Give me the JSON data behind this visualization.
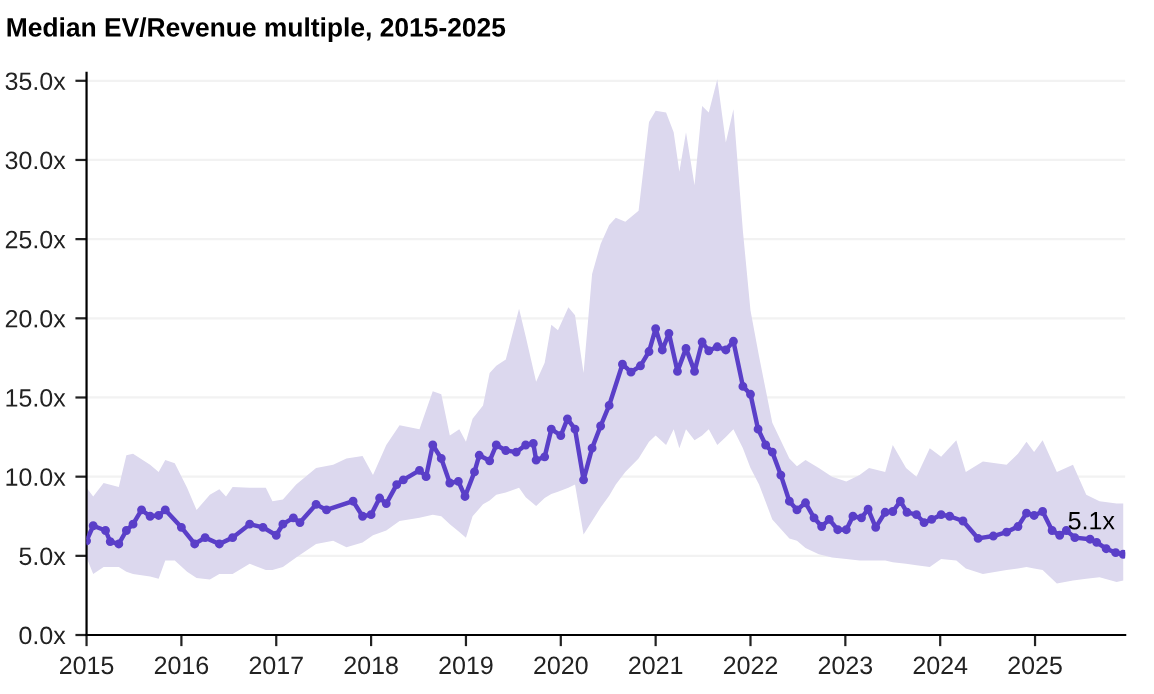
{
  "chart_data": {
    "type": "line",
    "title": "Median EV/Revenue multiple, 2015-2025",
    "xlim": [
      2015,
      2025.95
    ],
    "xticks": [
      2015,
      2016,
      2017,
      2018,
      2019,
      2020,
      2021,
      2022,
      2023,
      2024,
      2025
    ],
    "ylim": [
      0,
      35.5
    ],
    "yticks": [
      {
        "value": 0,
        "label": "0.0x"
      },
      {
        "value": 5,
        "label": "5.0x"
      },
      {
        "value": 10,
        "label": "10.0x"
      },
      {
        "value": 15,
        "label": "15.0x"
      },
      {
        "value": 20,
        "label": "20.0x"
      },
      {
        "value": 25,
        "label": "25.0x"
      },
      {
        "value": 30,
        "label": "30.0x"
      },
      {
        "value": 35,
        "label": "35.0x"
      }
    ],
    "grid": "y",
    "legend": false,
    "series": [
      {
        "type": "line",
        "color": "#dcd8ee",
        "marker": "none",
        "values": [
          null,
          null,
          null,
          null,
          null,
          null,
          null,
          null,
          null,
          null,
          null,
          null,
          null,
          null,
          null,
          null,
          null,
          null,
          null,
          null,
          null,
          null,
          null,
          null,
          null,
          null,
          null,
          null,
          null,
          null,
          null,
          null,
          null,
          null,
          null,
          null,
          null,
          null,
          null,
          null,
          null,
          null,
          null,
          null,
          null,
          null,
          null,
          null,
          null,
          null,
          null,
          null,
          null,
          null,
          null,
          null,
          null,
          null,
          null,
          null,
          null,
          null,
          null,
          null,
          null,
          null,
          null,
          null,
          null,
          null,
          null,
          null,
          null,
          null,
          null,
          null,
          null,
          null,
          null,
          null,
          null,
          null,
          null,
          null,
          null,
          null,
          null,
          null,
          null,
          null,
          null,
          null,
          null,
          null,
          null,
          null,
          null,
          null
        ],
        "x": [
          2015.0,
          2015.07,
          2015.18,
          2015.34,
          2015.42,
          2015.49,
          2015.67,
          2015.76,
          2015.83,
          2015.93,
          2016.06,
          2016.16,
          2016.3,
          2016.4,
          2016.47,
          2016.54,
          2016.72,
          2016.89,
          2016.96,
          2017.07,
          2017.21,
          2017.42,
          2017.6,
          2017.74,
          2017.91,
          2018.02,
          2018.16,
          2018.3,
          2018.51,
          2018.65,
          2018.74,
          2018.83,
          2018.93,
          2019.0,
          2019.07,
          2019.18,
          2019.25,
          2019.32,
          2019.42,
          2019.56,
          2019.63,
          2019.74,
          2019.83,
          2019.9,
          2019.97,
          2020.08,
          2020.15,
          2020.24,
          2020.33,
          2020.42,
          2020.51,
          2020.58,
          2020.68,
          2020.82,
          2020.93,
          2021.0,
          2021.11,
          2021.19,
          2021.25,
          2021.32,
          2021.41,
          2021.49,
          2021.56,
          2021.65,
          2021.74,
          2021.82,
          2021.92,
          2022.0,
          2022.09,
          2022.23,
          2022.41,
          2022.49,
          2022.58,
          2022.72,
          2022.86,
          2023.01,
          2023.15,
          2023.25,
          2023.42,
          2023.5,
          2023.64,
          2023.75,
          2023.89,
          2024.01,
          2024.17,
          2024.27,
          2024.45,
          2024.7,
          2024.82,
          2024.91,
          2024.99,
          2025.08,
          2025.23,
          2025.4,
          2025.54,
          2025.68,
          2025.86,
          2025.93
        ],
        "upper": [
          9.3,
          8.75,
          9.6,
          9.35,
          11.35,
          11.45,
          10.75,
          10.3,
          11.05,
          10.85,
          9.3,
          7.9,
          8.85,
          9.2,
          8.75,
          9.35,
          9.3,
          9.3,
          8.45,
          8.55,
          9.5,
          10.55,
          10.75,
          11.15,
          11.3,
          10.1,
          12.0,
          13.25,
          13.0,
          15.4,
          15.2,
          12.6,
          13.0,
          12.2,
          13.65,
          14.5,
          16.55,
          17.0,
          17.4,
          20.6,
          18.85,
          16.0,
          17.2,
          19.6,
          19.25,
          20.7,
          20.2,
          16.55,
          22.8,
          24.7,
          25.9,
          26.35,
          26.1,
          26.8,
          32.4,
          33.1,
          33.0,
          31.75,
          29.25,
          31.75,
          28.4,
          33.4,
          33.0,
          35.1,
          31.1,
          33.2,
          25.5,
          20.5,
          17.6,
          13.4,
          11.15,
          10.65,
          11.05,
          10.55,
          10.0,
          9.7,
          10.1,
          10.55,
          10.3,
          12.0,
          10.55,
          10.0,
          11.8,
          11.25,
          12.3,
          10.3,
          10.95,
          10.75,
          11.45,
          12.2,
          11.55,
          12.3,
          10.3,
          10.75,
          8.85,
          8.45,
          8.3,
          8.3
        ],
        "lower": [
          4.9,
          3.85,
          4.3,
          4.3,
          4.0,
          3.85,
          3.7,
          3.55,
          4.7,
          4.7,
          4.0,
          3.6,
          3.5,
          3.85,
          3.85,
          3.85,
          4.5,
          4.1,
          4.1,
          4.3,
          4.9,
          5.75,
          5.95,
          5.55,
          5.85,
          6.3,
          6.6,
          7.2,
          7.4,
          7.6,
          7.5,
          7.0,
          6.5,
          6.15,
          7.5,
          8.25,
          8.5,
          8.85,
          9.0,
          9.3,
          8.7,
          8.15,
          8.65,
          8.9,
          9.05,
          9.3,
          9.5,
          6.35,
          7.2,
          8.05,
          8.8,
          9.5,
          10.3,
          11.15,
          12.2,
          12.6,
          12.0,
          13.0,
          11.8,
          13.0,
          12.3,
          12.6,
          13.0,
          12.0,
          12.5,
          13.0,
          11.8,
          10.55,
          9.5,
          7.3,
          6.1,
          5.95,
          5.5,
          5.1,
          4.9,
          4.8,
          4.7,
          4.7,
          4.7,
          4.6,
          4.5,
          4.4,
          4.3,
          4.8,
          4.7,
          4.2,
          3.85,
          4.1,
          4.2,
          4.3,
          4.2,
          4.1,
          3.25,
          3.45,
          3.55,
          3.65,
          3.35,
          3.45
        ]
      },
      {
        "color": "#5a3fc8",
        "marker": "circle",
        "line_style": "solid",
        "x": [
          2015.0,
          2015.07,
          2015.2,
          2015.25,
          2015.34,
          2015.42,
          2015.49,
          2015.58,
          2015.67,
          2015.76,
          2015.83,
          2016.0,
          2016.14,
          2016.25,
          2016.4,
          2016.54,
          2016.72,
          2016.86,
          2017.0,
          2017.07,
          2017.18,
          2017.25,
          2017.42,
          2017.53,
          2017.81,
          2017.91,
          2018.0,
          2018.09,
          2018.16,
          2018.27,
          2018.34,
          2018.51,
          2018.58,
          2018.65,
          2018.74,
          2018.83,
          2018.92,
          2018.99,
          2019.09,
          2019.14,
          2019.25,
          2019.32,
          2019.42,
          2019.53,
          2019.63,
          2019.71,
          2019.74,
          2019.83,
          2019.9,
          2020.0,
          2020.07,
          2020.15,
          2020.24,
          2020.33,
          2020.42,
          2020.51,
          2020.65,
          2020.74,
          2020.84,
          2020.93,
          2021.0,
          2021.07,
          2021.14,
          2021.23,
          2021.32,
          2021.41,
          2021.49,
          2021.56,
          2021.65,
          2021.74,
          2021.82,
          2021.92,
          2022.0,
          2022.08,
          2022.16,
          2022.23,
          2022.32,
          2022.41,
          2022.49,
          2022.58,
          2022.67,
          2022.75,
          2022.83,
          2022.92,
          2023.01,
          2023.08,
          2023.17,
          2023.24,
          2023.32,
          2023.42,
          2023.5,
          2023.58,
          2023.65,
          2023.75,
          2023.83,
          2023.91,
          2024.01,
          2024.1,
          2024.24,
          2024.4,
          2024.56,
          2024.7,
          2024.82,
          2024.91,
          2024.99,
          2025.08,
          2025.18,
          2025.26,
          2025.33,
          2025.42,
          2025.58,
          2025.65,
          2025.75,
          2025.85,
          2025.93
        ],
        "values": [
          5.95,
          6.9,
          6.6,
          5.9,
          5.75,
          6.6,
          7.0,
          7.9,
          7.5,
          7.55,
          7.9,
          6.8,
          5.75,
          6.15,
          5.75,
          6.15,
          7.0,
          6.8,
          6.3,
          7.0,
          7.4,
          7.1,
          8.25,
          7.9,
          8.45,
          7.5,
          7.6,
          8.65,
          8.3,
          9.5,
          9.8,
          10.4,
          10.0,
          12.0,
          11.15,
          9.6,
          9.7,
          8.75,
          10.3,
          11.35,
          11.0,
          12.0,
          11.65,
          11.55,
          12.0,
          12.1,
          11.05,
          11.25,
          13.0,
          12.6,
          13.65,
          13.0,
          9.8,
          11.8,
          13.2,
          14.5,
          17.1,
          16.6,
          17.0,
          17.9,
          19.35,
          18.0,
          19.05,
          16.65,
          18.1,
          16.65,
          18.5,
          17.95,
          18.2,
          18.0,
          18.55,
          15.7,
          15.2,
          13.0,
          12.0,
          11.55,
          10.1,
          8.45,
          7.9,
          8.35,
          7.4,
          6.85,
          7.3,
          6.65,
          6.65,
          7.5,
          7.4,
          7.95,
          6.8,
          7.75,
          7.8,
          8.45,
          7.75,
          7.6,
          7.1,
          7.3,
          7.6,
          7.5,
          7.2,
          6.1,
          6.25,
          6.5,
          6.85,
          7.7,
          7.55,
          7.8,
          6.6,
          6.3,
          6.6,
          6.15,
          6.05,
          5.85,
          5.45,
          5.2,
          5.1
        ]
      }
    ],
    "annotations": [
      {
        "text": "5.1x",
        "x": 2025.93,
        "y": 5.1
      }
    ]
  }
}
